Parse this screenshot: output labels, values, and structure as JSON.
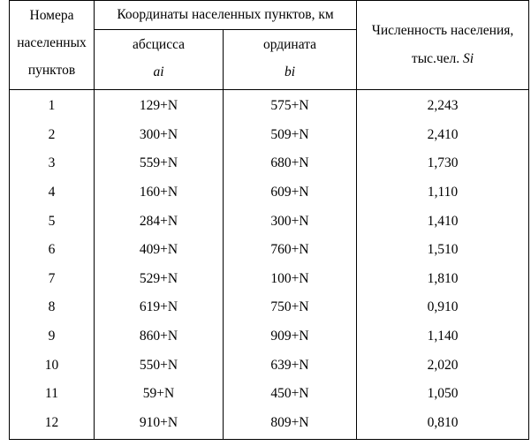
{
  "headers": {
    "number_line1": "Номера",
    "number_line2": "населенных",
    "number_line3": "пунктов",
    "coords": "Координаты населенных пунктов, км",
    "abscissa": "абсцисса",
    "abscissa_sym": "ai",
    "ordinate": "ордината",
    "ordinate_sym": "bi",
    "population_line1": "Численность населения,",
    "population_line2": "тыс.чел.",
    "population_sym": "Si"
  },
  "rows": [
    {
      "n": "1",
      "a": "129+N",
      "b": "575+N",
      "s": "2,243"
    },
    {
      "n": "2",
      "a": "300+N",
      "b": "509+N",
      "s": "2,410"
    },
    {
      "n": "3",
      "a": "559+N",
      "b": "680+N",
      "s": "1,730"
    },
    {
      "n": "4",
      "a": "160+N",
      "b": "609+N",
      "s": "1,110"
    },
    {
      "n": "5",
      "a": "284+N",
      "b": "300+N",
      "s": "1,410"
    },
    {
      "n": "6",
      "a": "409+N",
      "b": "760+N",
      "s": "1,510"
    },
    {
      "n": "7",
      "a": "529+N",
      "b": "100+N",
      "s": "1,810"
    },
    {
      "n": "8",
      "a": "619+N",
      "b": "750+N",
      "s": "0,910"
    },
    {
      "n": "9",
      "a": "860+N",
      "b": "909+N",
      "s": "1,140"
    },
    {
      "n": "10",
      "a": "550+N",
      "b": "639+N",
      "s": "2,020"
    },
    {
      "n": "11",
      "a": "59+N",
      "b": "450+N",
      "s": "1,050"
    },
    {
      "n": "12",
      "a": "910+N",
      "b": "809+N",
      "s": "0,810"
    }
  ]
}
